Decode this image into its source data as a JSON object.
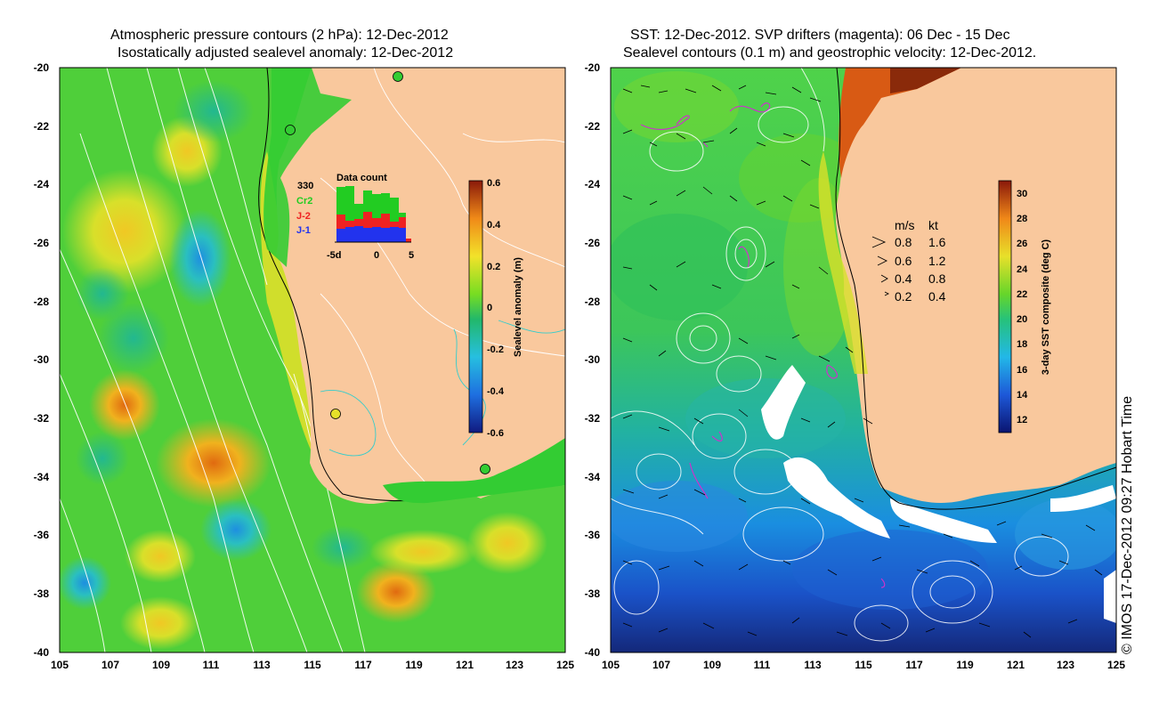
{
  "left_panel": {
    "title_line1": "Atmospheric pressure contours (2 hPa): 12-Dec-2012",
    "title_line2": "Isostatically adjusted sealevel anomaly: 12-Dec-2012",
    "lon_ticks": [
      "105",
      "107",
      "109",
      "111",
      "113",
      "115",
      "117",
      "119",
      "121",
      "123",
      "125"
    ],
    "lat_ticks": [
      "-20",
      "-22",
      "-24",
      "-26",
      "-28",
      "-30",
      "-32",
      "-34",
      "-36",
      "-38",
      "-40"
    ],
    "colorbar": {
      "label": "Sealevel anomaly (m)",
      "ticks": [
        "0.6",
        "0.4",
        "0.2",
        "0",
        "-0.2",
        "-0.4",
        "-0.6"
      ],
      "range": [
        -0.6,
        0.6
      ]
    },
    "data_count": {
      "title": "Data count",
      "total": "330",
      "sources": [
        "Cr2",
        "J-2",
        "J-1"
      ],
      "source_colors": [
        "#22cc22",
        "#ee2222",
        "#2233ee"
      ],
      "x_ticks": [
        "-5d",
        "0",
        "5"
      ]
    }
  },
  "right_panel": {
    "title_line1": "SST: 12-Dec-2012. SVP drifters (magenta): 06 Dec - 15 Dec",
    "title_line2": "Sealevel contours (0.1 m) and geostrophic velocity: 12-Dec-2012.",
    "lon_ticks": [
      "105",
      "107",
      "109",
      "111",
      "113",
      "115",
      "117",
      "119",
      "121",
      "123",
      "125"
    ],
    "lat_ticks": [
      "-20",
      "-22",
      "-24",
      "-26",
      "-28",
      "-30",
      "-32",
      "-34",
      "-36",
      "-38",
      "-40"
    ],
    "colorbar": {
      "label": "3-day SST composite (deg C)",
      "ticks": [
        "30",
        "28",
        "26",
        "24",
        "22",
        "20",
        "18",
        "16",
        "14",
        "12"
      ],
      "range": [
        11,
        31
      ]
    },
    "velocity_legend": {
      "header_ms": "m/s",
      "header_kt": "kt",
      "rows": [
        {
          "ms": "0.8",
          "kt": "1.6"
        },
        {
          "ms": "0.6",
          "kt": "1.2"
        },
        {
          "ms": "0.4",
          "kt": "0.8"
        },
        {
          "ms": "0.2",
          "kt": "0.4"
        }
      ]
    }
  },
  "credit": "© IMOS 17-Dec-2012 09:27 Hobart Time",
  "colors": {
    "land": "#f9c89d",
    "sla_green": "#33cc33",
    "sst_green": "#44cc33",
    "drifter": "#cc33cc",
    "contour": "#ffffff"
  }
}
